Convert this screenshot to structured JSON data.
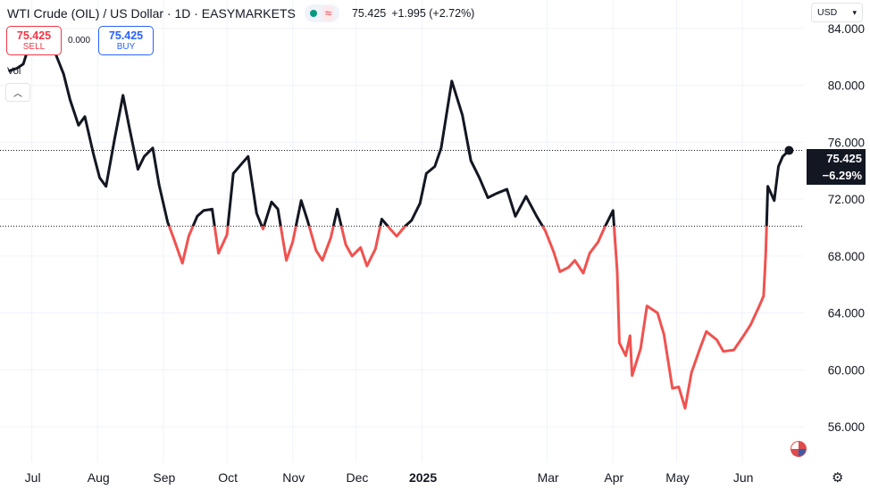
{
  "header": {
    "title": "WTI Crude (OIL) / US Dollar · 1D · EASYMARKETS",
    "price": "75.425",
    "change": "+1.995 (+2.72%)"
  },
  "trade": {
    "sell_price": "75.425",
    "sell_label": "SELL",
    "spread": "0.000",
    "buy_price": "75.425",
    "buy_label": "BUY"
  },
  "vol_label": "Vol",
  "currency": "USD",
  "last_price": {
    "value": "75.425",
    "change_pct": "−6.29%"
  },
  "colors": {
    "above": "#131722",
    "below": "#f0524f",
    "grid": "#f0f3fa"
  },
  "chart_data": {
    "type": "line",
    "title": "",
    "xlabel": "",
    "ylabel": "",
    "ylim": [
      53.5,
      86.0
    ],
    "baseline": 70.1,
    "last_value": 75.425,
    "y_ticks": [
      "84.000",
      "80.000",
      "76.000",
      "72.000",
      "68.000",
      "64.000",
      "60.000",
      "56.000"
    ],
    "y_tick_values": [
      84,
      80,
      76,
      72,
      68,
      64,
      60,
      56
    ],
    "x_ticks": [
      "Jul",
      "Aug",
      "Sep",
      "Oct",
      "Nov",
      "Dec",
      "2025",
      "Mar",
      "Apr",
      "May",
      "Jun"
    ],
    "x_tick_dates": [
      "2024-07-01",
      "2024-08-01",
      "2024-09-01",
      "2024-10-01",
      "2024-11-01",
      "2024-12-01",
      "2025-01-01",
      "2025-03-01",
      "2025-04-01",
      "2025-05-01",
      "2025-06-01"
    ],
    "series": [
      {
        "dates": [
          "2024-06-20",
          "2024-06-24",
          "2024-06-27",
          "2024-07-01",
          "2024-07-05",
          "2024-07-08",
          "2024-07-12",
          "2024-07-16",
          "2024-07-19",
          "2024-07-23",
          "2024-07-26",
          "2024-07-30",
          "2024-08-02",
          "2024-08-05",
          "2024-08-09",
          "2024-08-13",
          "2024-08-16",
          "2024-08-20",
          "2024-08-23",
          "2024-08-27",
          "2024-08-30",
          "2024-09-03",
          "2024-09-06",
          "2024-09-10",
          "2024-09-13",
          "2024-09-17",
          "2024-09-20",
          "2024-09-24",
          "2024-09-27",
          "2024-10-01",
          "2024-10-04",
          "2024-10-08",
          "2024-10-11",
          "2024-10-15",
          "2024-10-18",
          "2024-10-22",
          "2024-10-25",
          "2024-10-29",
          "2024-11-01",
          "2024-11-05",
          "2024-11-08",
          "2024-11-12",
          "2024-11-15",
          "2024-11-19",
          "2024-11-22",
          "2024-11-26",
          "2024-11-29",
          "2024-12-03",
          "2024-12-06",
          "2024-12-10",
          "2024-12-13",
          "2024-12-17",
          "2024-12-20",
          "2024-12-24",
          "2024-12-27",
          "2024-12-31",
          "2025-01-03",
          "2025-01-07",
          "2025-01-10",
          "2025-01-15",
          "2025-01-20",
          "2025-01-24",
          "2025-01-28",
          "2025-02-01",
          "2025-02-05",
          "2025-02-10",
          "2025-02-14",
          "2025-02-19",
          "2025-02-24",
          "2025-02-28",
          "2025-03-04",
          "2025-03-07",
          "2025-03-11",
          "2025-03-14",
          "2025-03-18",
          "2025-03-21",
          "2025-03-25",
          "2025-03-28",
          "2025-04-01",
          "2025-04-03",
          "2025-04-04",
          "2025-04-07",
          "2025-04-09",
          "2025-04-10",
          "2025-04-14",
          "2025-04-17",
          "2025-04-22",
          "2025-04-25",
          "2025-04-29",
          "2025-05-02",
          "2025-05-05",
          "2025-05-08",
          "2025-05-12",
          "2025-05-15",
          "2025-05-20",
          "2025-05-23",
          "2025-05-28",
          "2025-06-02",
          "2025-06-05",
          "2025-06-09",
          "2025-06-11",
          "2025-06-12",
          "2025-06-13",
          "2025-06-16",
          "2025-06-18",
          "2025-06-20",
          "2025-06-23"
        ],
        "values": [
          81.0,
          81.2,
          81.5,
          83.4,
          83.6,
          82.4,
          82.3,
          80.8,
          79.0,
          77.2,
          77.8,
          75.2,
          73.5,
          72.9,
          76.2,
          79.3,
          77.0,
          74.1,
          75.0,
          75.6,
          73.0,
          70.4,
          69.2,
          67.5,
          69.4,
          70.8,
          71.2,
          71.3,
          68.2,
          69.5,
          73.8,
          74.5,
          75.0,
          71.0,
          69.9,
          71.8,
          71.3,
          67.7,
          69.0,
          71.9,
          70.5,
          68.4,
          67.7,
          69.3,
          71.3,
          68.8,
          68.0,
          68.6,
          67.3,
          68.5,
          70.6,
          69.9,
          69.4,
          70.1,
          70.5,
          71.7,
          73.8,
          74.3,
          75.6,
          80.3,
          77.9,
          74.7,
          73.5,
          72.1,
          72.4,
          72.7,
          70.8,
          72.2,
          70.8,
          69.8,
          68.3,
          66.9,
          67.2,
          67.7,
          66.8,
          68.2,
          69.0,
          70.0,
          71.2,
          66.9,
          61.9,
          61.0,
          62.4,
          59.6,
          61.5,
          64.5,
          64.0,
          62.5,
          58.7,
          58.8,
          57.3,
          59.8,
          61.5,
          62.7,
          62.1,
          61.3,
          61.4,
          62.5,
          63.2,
          64.5,
          65.2,
          68.2,
          72.9,
          71.9,
          74.3,
          75.0,
          75.425
        ]
      }
    ]
  }
}
